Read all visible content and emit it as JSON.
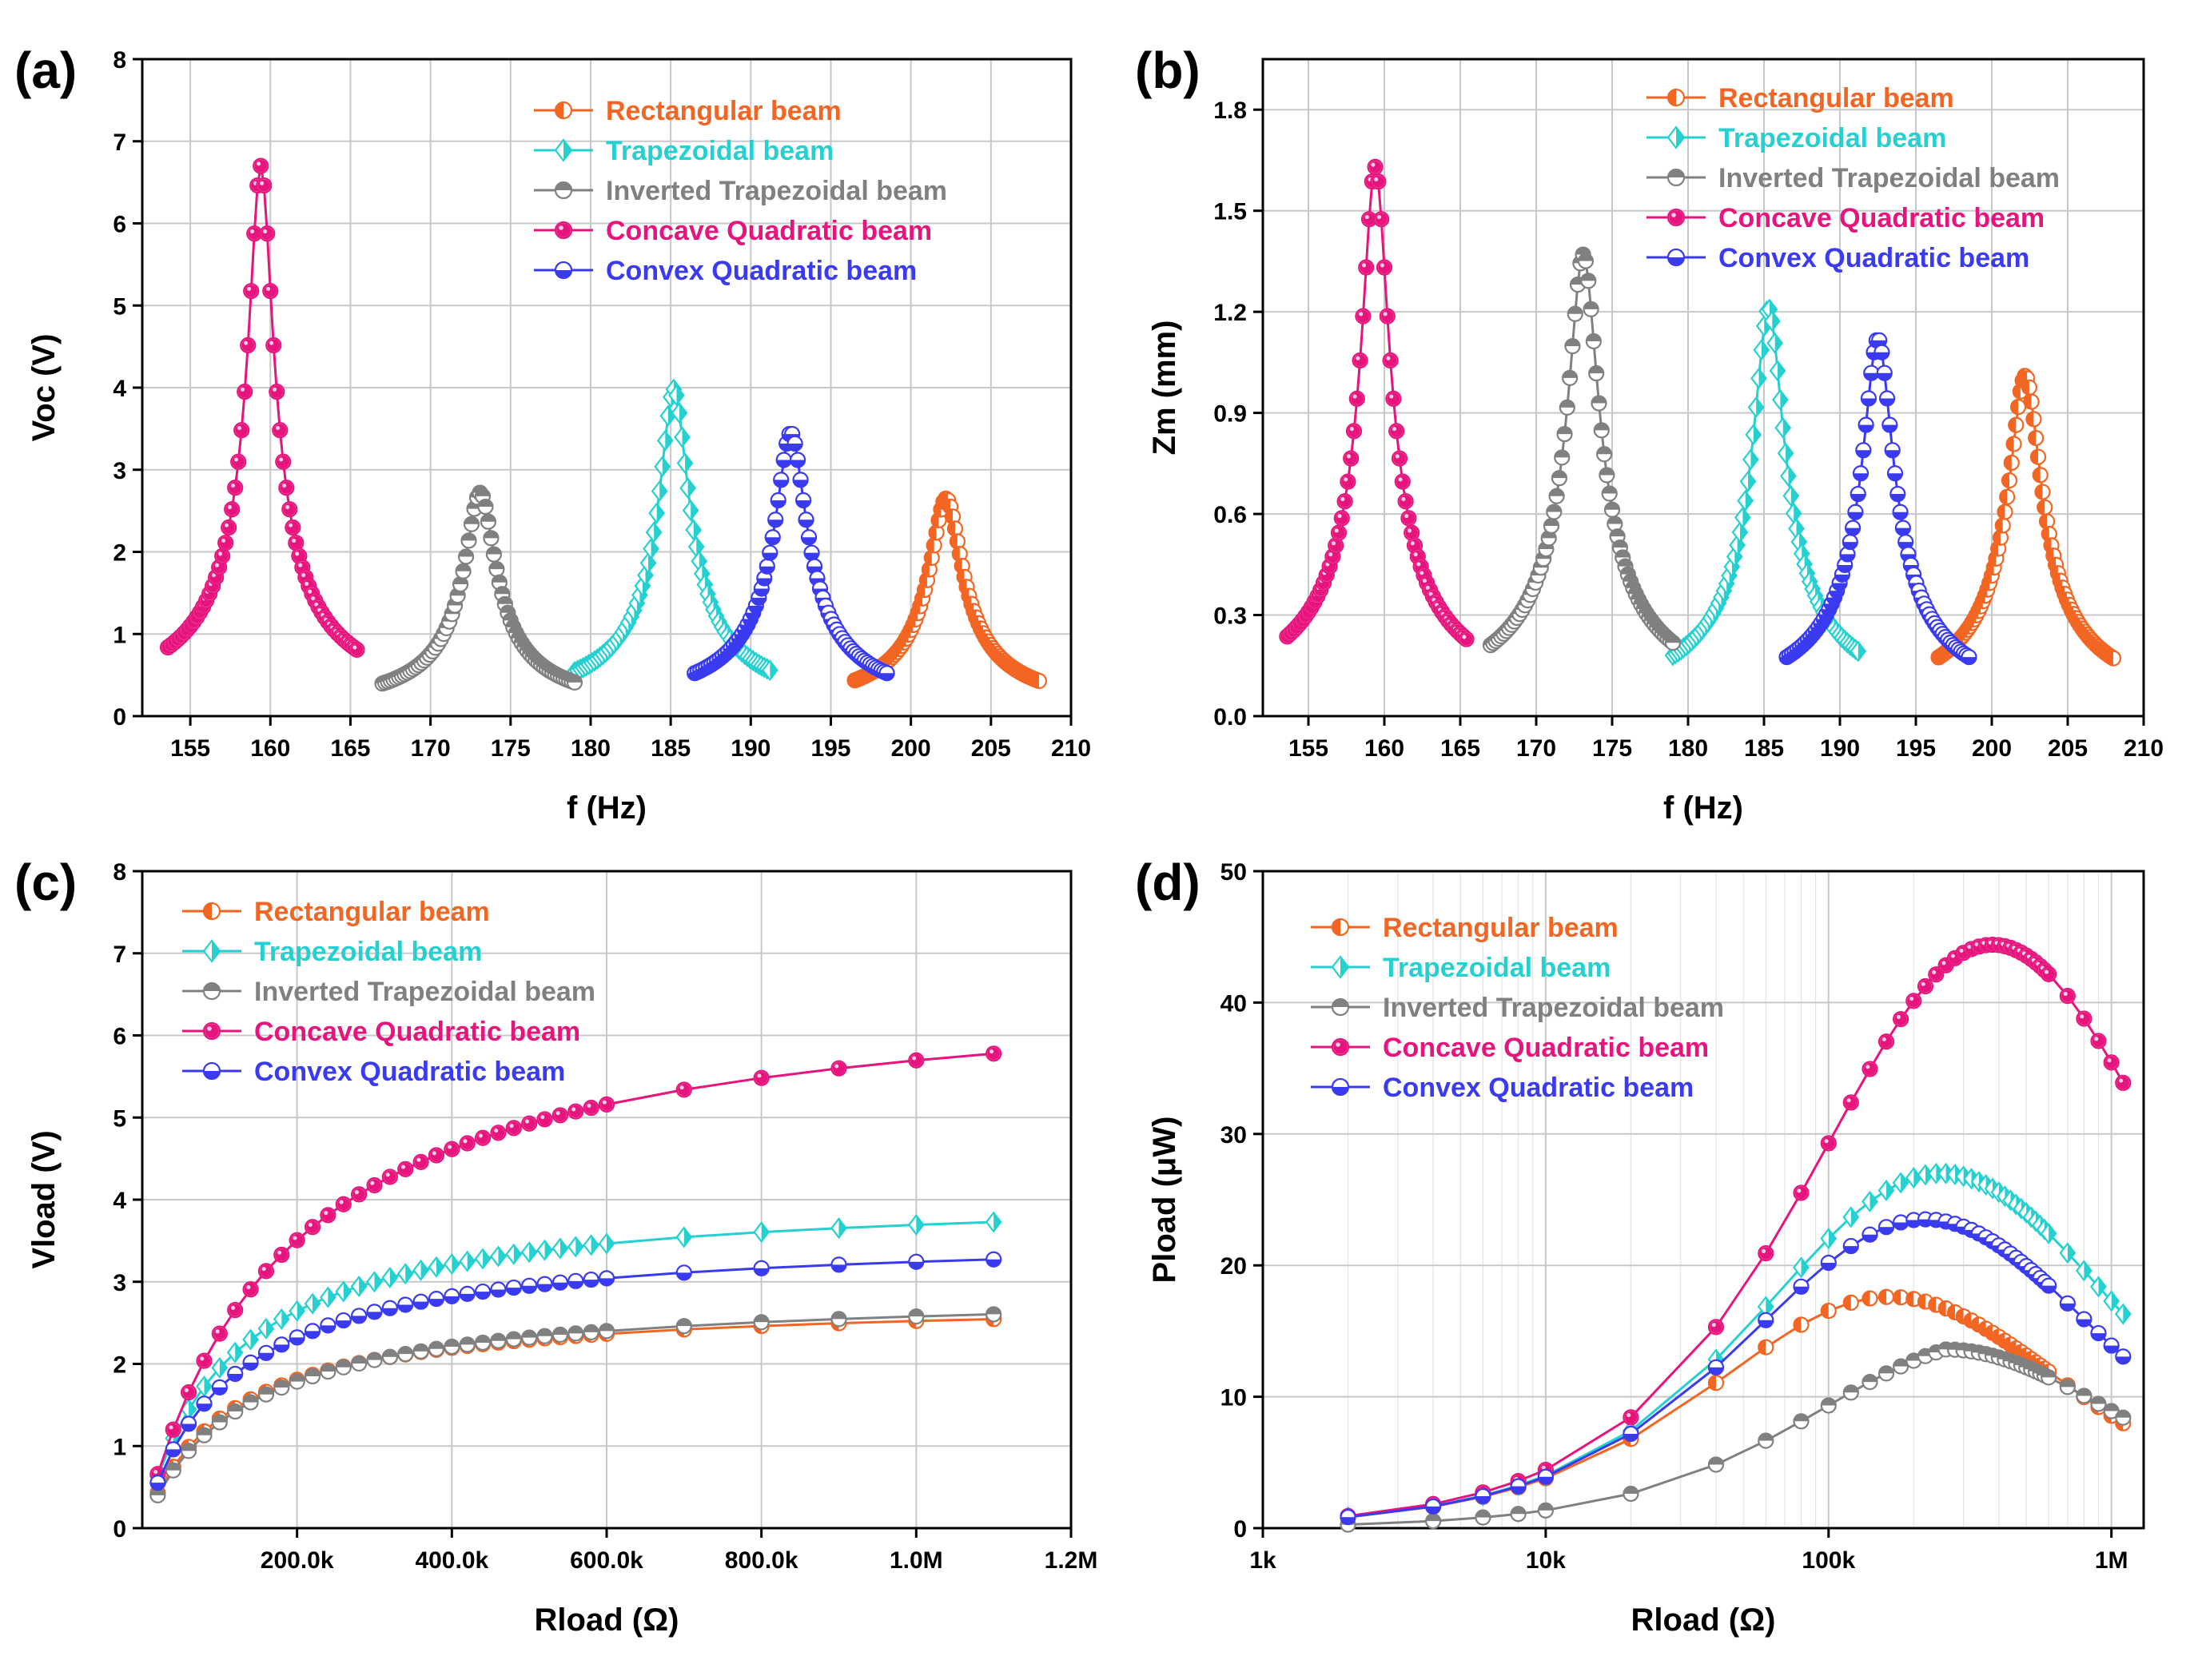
{
  "series_styles": [
    {
      "name": "Rectangular beam",
      "color": "#f26522",
      "marker": "half-left"
    },
    {
      "name": "Trapezoidal beam",
      "color": "#25d0d0",
      "marker": "half-diamond"
    },
    {
      "name": "Inverted Trapezoidal beam",
      "color": "#808080",
      "marker": "half-top"
    },
    {
      "name": "Concave Quadratic beam",
      "color": "#e8147d",
      "marker": "dot"
    },
    {
      "name": "Convex Quadratic beam",
      "color": "#3a3af0",
      "marker": "half-bottom"
    }
  ],
  "chart_data": [
    {
      "id": "a",
      "panel_label": "(a)",
      "type": "line",
      "xlabel": "f (Hz)",
      "ylabel": "Voc (V)",
      "xlim": [
        152,
        210
      ],
      "ylim": [
        0,
        8
      ],
      "x_ticks": [
        155,
        160,
        165,
        170,
        175,
        180,
        185,
        190,
        195,
        200,
        205,
        210
      ],
      "x_tick_labels": [
        "155",
        "160",
        "165",
        "170",
        "175",
        "180",
        "185",
        "190",
        "195",
        "200",
        "205",
        "210"
      ],
      "y_ticks": [
        0,
        1,
        2,
        3,
        4,
        5,
        6,
        7,
        8
      ],
      "y_tick_labels": [
        "0",
        "1",
        "2",
        "3",
        "4",
        "5",
        "6",
        "7",
        "8"
      ],
      "legend_position": "top-right",
      "series": [
        {
          "name": "Rectangular beam",
          "model": "resonance",
          "x_range": [
            196.5,
            208
          ],
          "center": 202.2,
          "peak": 2.65,
          "width": 0.95,
          "n": 80
        },
        {
          "name": "Trapezoidal beam",
          "model": "resonance",
          "x_range": [
            179,
            191.2
          ],
          "center": 185.2,
          "peak": 3.98,
          "width": 0.85,
          "n": 70
        },
        {
          "name": "Inverted Trapezoidal beam",
          "model": "resonance",
          "x_range": [
            167,
            179
          ],
          "center": 173.1,
          "peak": 2.72,
          "width": 0.9,
          "n": 70
        },
        {
          "name": "Concave Quadratic beam",
          "model": "resonance",
          "x_range": [
            153.6,
            165.4
          ],
          "center": 159.4,
          "peak": 6.7,
          "width": 0.73,
          "n": 60
        },
        {
          "name": "Convex Quadratic beam",
          "model": "resonance",
          "x_range": [
            186.5,
            198.5
          ],
          "center": 192.5,
          "peak": 3.45,
          "width": 0.92,
          "n": 70
        }
      ]
    },
    {
      "id": "b",
      "panel_label": "(b)",
      "type": "line",
      "xlabel": "f (Hz)",
      "ylabel": "Zm (mm)",
      "xlim": [
        152,
        210
      ],
      "ylim": [
        0,
        1.95
      ],
      "x_ticks": [
        155,
        160,
        165,
        170,
        175,
        180,
        185,
        190,
        195,
        200,
        205,
        210
      ],
      "x_tick_labels": [
        "155",
        "160",
        "165",
        "170",
        "175",
        "180",
        "185",
        "190",
        "195",
        "200",
        "205",
        "210"
      ],
      "y_ticks": [
        0,
        0.3,
        0.6,
        0.9,
        1.2,
        1.5,
        1.8
      ],
      "y_tick_labels": [
        "0.0",
        "0.3",
        "0.6",
        "0.9",
        "1.2",
        "1.5",
        "1.8"
      ],
      "legend_position": "top-right",
      "series": [
        {
          "name": "Rectangular beam",
          "model": "resonance",
          "x_range": [
            196.5,
            208
          ],
          "center": 202.2,
          "peak": 1.01,
          "width": 1.0,
          "n": 80
        },
        {
          "name": "Trapezoidal beam",
          "model": "resonance",
          "x_range": [
            179,
            191.2
          ],
          "center": 185.3,
          "peak": 1.21,
          "width": 0.95,
          "n": 70
        },
        {
          "name": "Inverted Trapezoidal beam",
          "model": "resonance",
          "x_range": [
            167,
            179
          ],
          "center": 173.1,
          "peak": 1.37,
          "width": 0.95,
          "n": 70
        },
        {
          "name": "Concave Quadratic beam",
          "model": "resonance",
          "x_range": [
            153.6,
            165.4
          ],
          "center": 159.4,
          "peak": 1.63,
          "width": 0.85,
          "n": 60
        },
        {
          "name": "Convex Quadratic beam",
          "model": "resonance",
          "x_range": [
            186.5,
            198.5
          ],
          "center": 192.5,
          "peak": 1.12,
          "width": 0.95,
          "n": 70
        }
      ]
    },
    {
      "id": "c",
      "panel_label": "(c)",
      "type": "line",
      "xlabel": "Rload (Ω)",
      "ylabel": "Vload (V)",
      "xlim": [
        0,
        1200000
      ],
      "ylim": [
        0,
        8
      ],
      "x_ticks": [
        200000,
        400000,
        600000,
        800000,
        1000000,
        1200000
      ],
      "x_tick_labels": [
        "200.0k",
        "400.0k",
        "600.0k",
        "800.0k",
        "1.0M",
        "1.2M"
      ],
      "y_ticks": [
        0,
        1,
        2,
        3,
        4,
        5,
        6,
        7,
        8
      ],
      "y_tick_labels": [
        "0",
        "1",
        "2",
        "3",
        "4",
        "5",
        "6",
        "7",
        "8"
      ],
      "legend_position": "top-left",
      "x_points": [
        20000,
        40000,
        60000,
        80000,
        100000,
        120000,
        140000,
        160000,
        180000,
        200000,
        220000,
        240000,
        260000,
        280000,
        300000,
        320000,
        340000,
        360000,
        380000,
        400000,
        420000,
        440000,
        460000,
        480000,
        500000,
        520000,
        540000,
        560000,
        580000,
        600000,
        700000,
        800000,
        900000,
        1000000,
        1100000
      ],
      "series": [
        {
          "name": "Rectangular beam",
          "model": "divider",
          "voc": 2.8,
          "rs": 110000
        },
        {
          "name": "Trapezoidal beam",
          "model": "divider",
          "voc": 4.1,
          "rs": 110000
        },
        {
          "name": "Inverted Trapezoidal beam",
          "model": "divider",
          "voc": 2.9,
          "rs": 125000
        },
        {
          "name": "Concave Quadratic beam",
          "model": "divider",
          "voc": 6.75,
          "rs": 185000
        },
        {
          "name": "Convex Quadratic beam",
          "model": "divider",
          "voc": 3.6,
          "rs": 110000
        }
      ]
    },
    {
      "id": "d",
      "panel_label": "(d)",
      "type": "line",
      "xscale": "log",
      "xlabel": "Rload (Ω)",
      "ylabel": "Pload (μW)",
      "xlim": [
        1000,
        1300000
      ],
      "ylim": [
        0,
        50
      ],
      "x_ticks": [
        1000,
        10000,
        100000,
        1000000
      ],
      "x_tick_labels": [
        "1k",
        "10k",
        "100k",
        "1M"
      ],
      "y_ticks": [
        0,
        10,
        20,
        30,
        40,
        50
      ],
      "y_tick_labels": [
        "0",
        "10",
        "20",
        "30",
        "40",
        "50"
      ],
      "legend_position": "top-left",
      "x_points": [
        2000,
        4000,
        6000,
        8000,
        10000,
        20000,
        40000,
        60000,
        80000,
        100000,
        120000,
        140000,
        160000,
        180000,
        200000,
        220000,
        240000,
        260000,
        280000,
        300000,
        320000,
        340000,
        360000,
        380000,
        400000,
        420000,
        440000,
        460000,
        480000,
        500000,
        520000,
        540000,
        560000,
        580000,
        600000,
        700000,
        800000,
        900000,
        1000000,
        1100000
      ],
      "series": [
        {
          "name": "Rectangular beam",
          "model": "power",
          "pmax": 17.6,
          "ropt": 165000,
          "segments": [
            [
              2000,
              100000
            ],
            [
              100000,
              600000
            ],
            [
              700000,
              1100000
            ]
          ],
          "joins": [
            0.5,
            1.0,
            0.42
          ]
        },
        {
          "name": "Trapezoidal beam",
          "model": "power",
          "pmax": 27.0,
          "ropt": 250000
        },
        {
          "name": "Inverted Trapezoidal beam",
          "model": "power",
          "pmax": 13.6,
          "ropt": 260000,
          "low_scale": 0.62
        },
        {
          "name": "Concave Quadratic beam",
          "model": "power",
          "pmax": 44.4,
          "ropt": 380000
        },
        {
          "name": "Convex Quadratic beam",
          "model": "power",
          "pmax": 23.5,
          "ropt": 220000
        }
      ]
    }
  ]
}
